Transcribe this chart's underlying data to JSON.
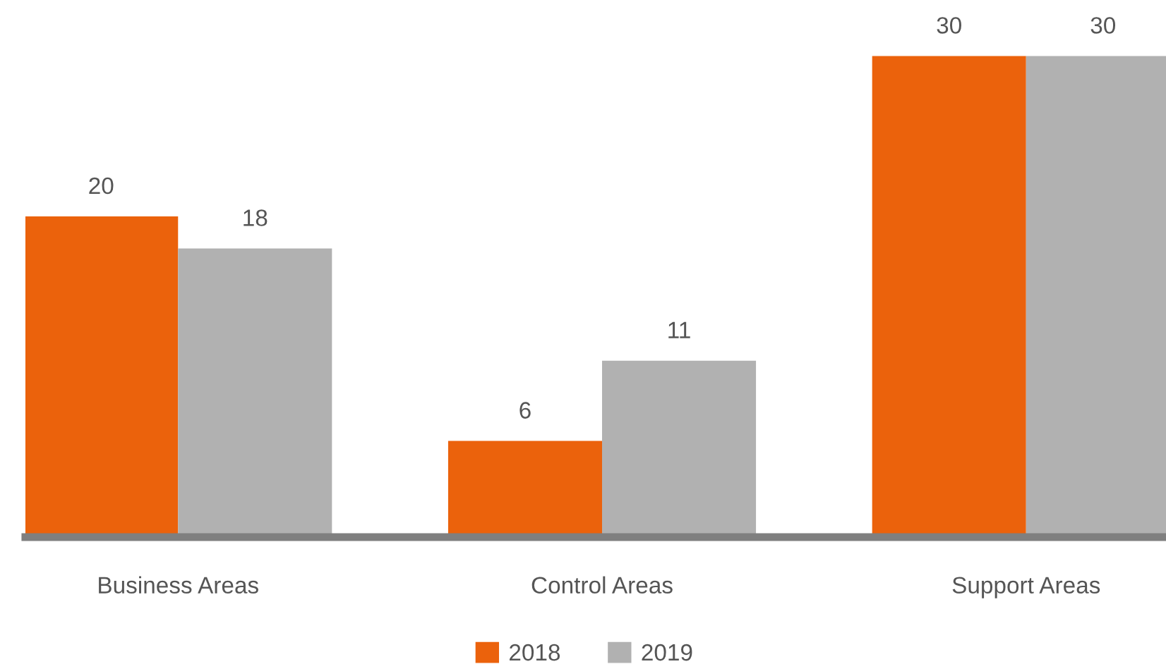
{
  "chart_data": {
    "type": "bar",
    "categories": [
      "Business Areas",
      "Control Areas",
      "Support Areas"
    ],
    "series": [
      {
        "name": "2018",
        "color": "#eb620c",
        "values": [
          20,
          6,
          30
        ]
      },
      {
        "name": "2019",
        "color": "#b1b1b1",
        "values": [
          18,
          11,
          30
        ]
      }
    ],
    "data_labels": true,
    "legend": "bottom",
    "grid": false
  }
}
